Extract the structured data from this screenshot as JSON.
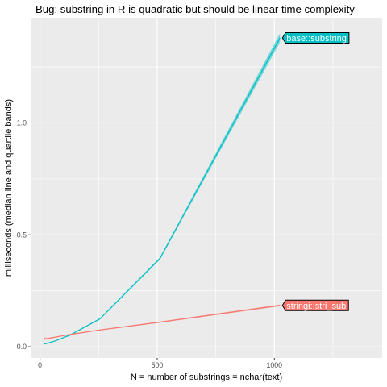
{
  "chart_data": {
    "type": "line",
    "title": "Bug: substring in R is quadratic but should be linear time complexity",
    "xlabel": "N = number of substrings = nchar(text)",
    "ylabel": "milliseconds (median line and quartile bands)",
    "xlim": [
      -40,
      1460
    ],
    "ylim": [
      -0.05,
      1.47
    ],
    "x_ticks": [
      0,
      500,
      1000
    ],
    "x_tick_labels": [
      "0",
      "500",
      "1000"
    ],
    "y_ticks": [
      0.0,
      0.5,
      1.0
    ],
    "y_tick_labels": [
      "0.0",
      "0.5",
      "1.0"
    ],
    "grid": true,
    "legend": "direct labels at line ends",
    "series": [
      {
        "name": "base::substring",
        "color": "#00BFC4",
        "x": [
          16,
          32,
          64,
          128,
          256,
          512,
          1024
        ],
        "median": [
          0.012,
          0.016,
          0.026,
          0.052,
          0.125,
          0.395,
          1.38
        ],
        "q1": [
          0.011,
          0.015,
          0.025,
          0.05,
          0.122,
          0.39,
          1.36
        ],
        "q3": [
          0.014,
          0.018,
          0.028,
          0.055,
          0.128,
          0.4,
          1.4
        ]
      },
      {
        "name": "stringi::stri_sub",
        "color": "#F8766D",
        "x": [
          16,
          32,
          64,
          128,
          256,
          512,
          1024
        ],
        "median": [
          0.033,
          0.036,
          0.043,
          0.055,
          0.075,
          0.11,
          0.185
        ],
        "q1": [
          0.03,
          0.034,
          0.041,
          0.053,
          0.073,
          0.107,
          0.181
        ],
        "q3": [
          0.043,
          0.04,
          0.045,
          0.057,
          0.077,
          0.113,
          0.189
        ]
      }
    ]
  }
}
